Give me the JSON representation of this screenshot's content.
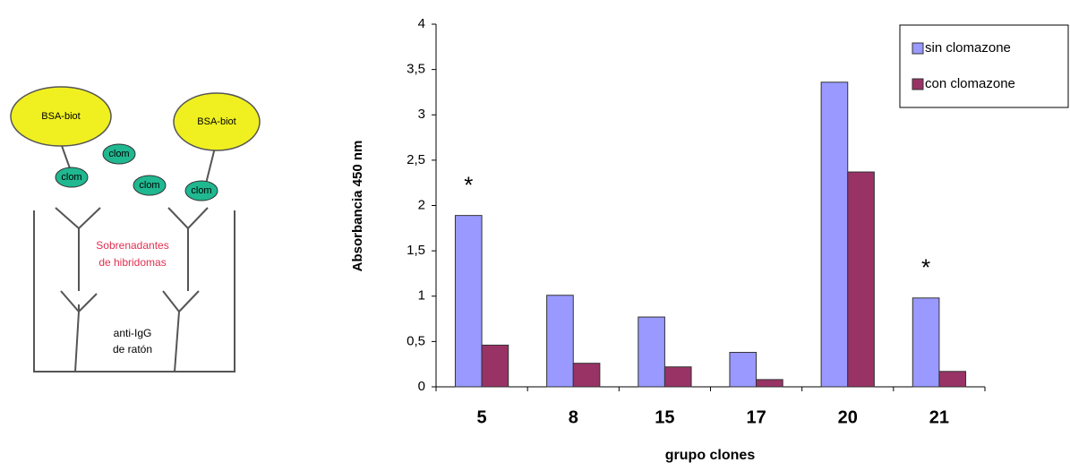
{
  "diagram": {
    "antigens": [
      "BSA-biot",
      "BSA-biot"
    ],
    "clomazone": [
      "clom",
      "clom",
      "clom",
      "clom"
    ],
    "supernatant": [
      "Sobrenadantes",
      "de hibridomas"
    ],
    "capture": [
      "anti-IgG",
      "de ratón"
    ]
  },
  "chart_data": {
    "type": "bar",
    "y_label": "Absorbancia 450 nm",
    "x_label": "grupo clones",
    "categories": [
      "5",
      "8",
      "15",
      "17",
      "20",
      "21"
    ],
    "series": [
      {
        "name": "sin clomazone",
        "color": "#9999ff",
        "values": [
          1.89,
          1.01,
          0.77,
          0.38,
          3.36,
          0.98
        ]
      },
      {
        "name": "con clomazone",
        "color": "#993366",
        "values": [
          0.46,
          0.26,
          0.22,
          0.08,
          2.37,
          0.17
        ]
      }
    ],
    "ylim": [
      0,
      4
    ],
    "yticks": [
      0,
      {
        "value": 0.5,
        "label": "0,5"
      },
      1,
      {
        "value": 1.5,
        "label": "1,5"
      },
      2,
      {
        "value": 2.5,
        "label": "2,5"
      },
      3,
      {
        "value": 3.5,
        "label": "3,5"
      },
      4
    ],
    "annotations": [
      {
        "text": "*",
        "category": "5"
      },
      {
        "text": "*",
        "category": "21"
      }
    ],
    "legend": "top-right"
  }
}
